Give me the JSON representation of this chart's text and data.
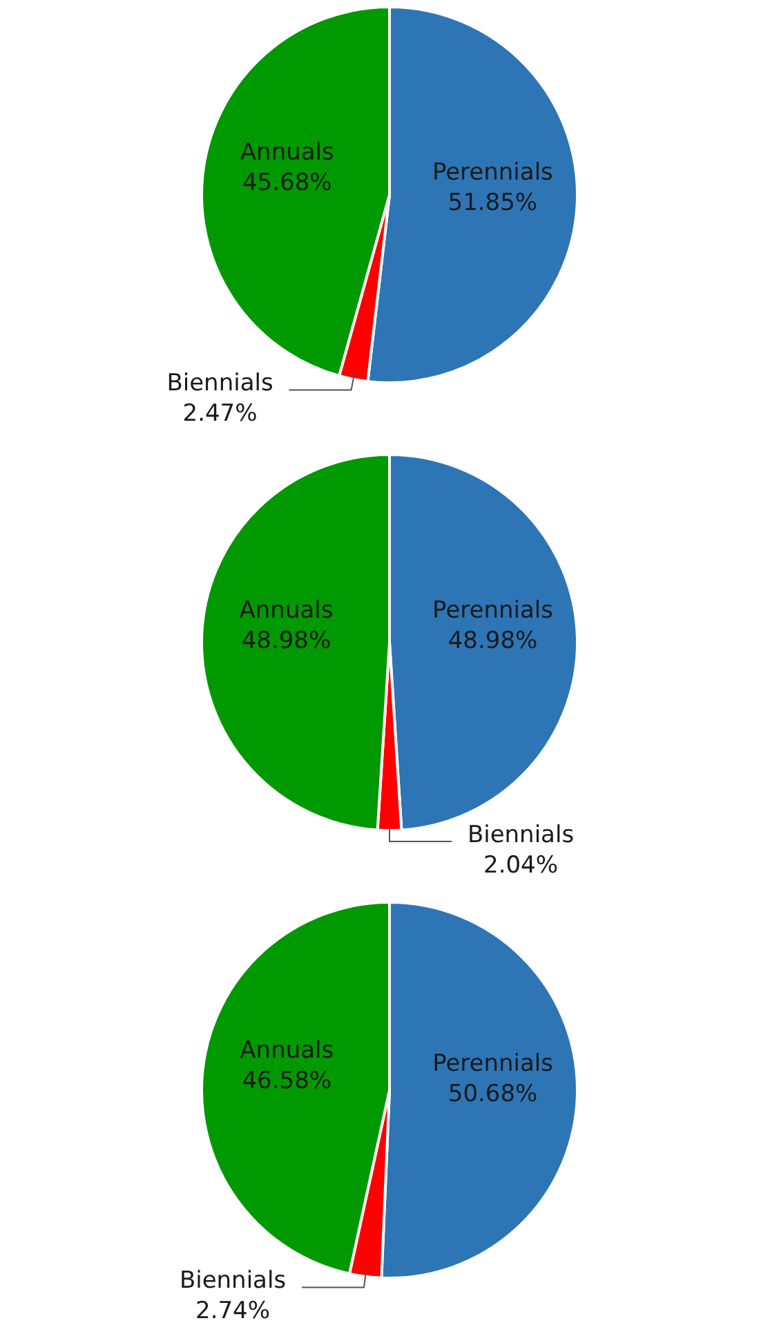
{
  "chart_data": [
    {
      "type": "pie",
      "categories": [
        "Perennials",
        "Biennials",
        "Annuals"
      ],
      "values": [
        51.85,
        2.47,
        45.68
      ],
      "value_labels": [
        "51.85%",
        "2.47%",
        "45.68%"
      ],
      "colors": [
        "#2e75b6",
        "#ff0000",
        "#009900"
      ]
    },
    {
      "type": "pie",
      "categories": [
        "Perennials",
        "Biennials",
        "Annuals"
      ],
      "values": [
        48.98,
        2.04,
        48.98
      ],
      "value_labels": [
        "48.98%",
        "2.04%",
        "48.98%"
      ],
      "colors": [
        "#2e75b6",
        "#ff0000",
        "#009900"
      ]
    },
    {
      "type": "pie",
      "categories": [
        "Perennials",
        "Biennials",
        "Annuals"
      ],
      "values": [
        50.68,
        2.74,
        46.58
      ],
      "value_labels": [
        "50.68%",
        "2.74%",
        "46.58%"
      ],
      "colors": [
        "#2e75b6",
        "#ff0000",
        "#009900"
      ]
    }
  ]
}
